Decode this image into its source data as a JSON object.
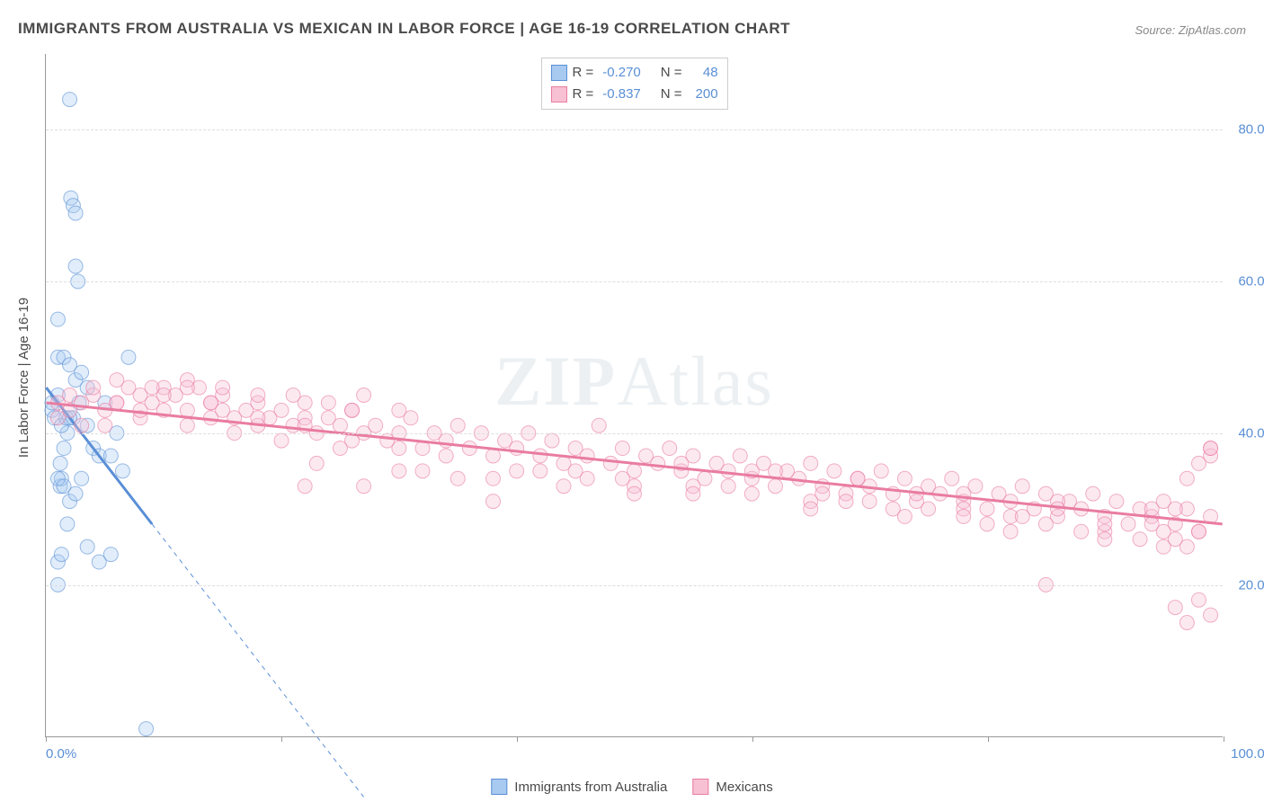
{
  "title": "IMMIGRANTS FROM AUSTRALIA VS MEXICAN IN LABOR FORCE | AGE 16-19 CORRELATION CHART",
  "source_label": "Source: ZipAtlas.com",
  "y_axis_label": "In Labor Force | Age 16-19",
  "watermark": {
    "bold": "ZIP",
    "rest": "Atlas"
  },
  "chart": {
    "type": "scatter",
    "background_color": "#ffffff",
    "grid_color": "#dddddd",
    "axis_color": "#999999",
    "tick_label_color": "#5a8fd6",
    "xlim": [
      0,
      100
    ],
    "ylim": [
      0,
      90
    ],
    "x_tick_positions": [
      0,
      20,
      40,
      60,
      80,
      100
    ],
    "x_tick_labels_shown": {
      "0": "0.0%",
      "100": "100.0%"
    },
    "y_tick_positions": [
      20,
      40,
      60,
      80
    ],
    "y_tick_labels": {
      "20": "20.0%",
      "40": "40.0%",
      "60": "60.0%",
      "80": "80.0%"
    },
    "label_fontsize": 15,
    "title_fontsize": 17,
    "marker_radius": 8,
    "marker_fill_opacity": 0.35,
    "marker_stroke_opacity": 0.6,
    "marker_stroke_width": 1,
    "regression_line_width_solid": 3,
    "regression_line_width_dash": 1
  },
  "series": [
    {
      "name": "Immigrants from Australia",
      "color": "#5a8fd6",
      "fill_color": "#a8caf0",
      "R": "-0.270",
      "N": "48",
      "regression": {
        "x1": 0,
        "y1": 46,
        "x2_solid": 9,
        "y2_solid": 28,
        "x2_dash": 27,
        "y2_dash": -8
      },
      "points": [
        [
          0.5,
          43
        ],
        [
          0.5,
          44
        ],
        [
          0.7,
          42
        ],
        [
          1.0,
          45
        ],
        [
          1.2,
          33
        ],
        [
          1.3,
          34
        ],
        [
          1.5,
          38
        ],
        [
          1.8,
          40
        ],
        [
          2.0,
          84
        ],
        [
          2.1,
          71
        ],
        [
          2.3,
          70
        ],
        [
          2.5,
          69
        ],
        [
          2.5,
          62
        ],
        [
          2.7,
          60
        ],
        [
          1.0,
          55
        ],
        [
          1.0,
          50
        ],
        [
          1.5,
          50
        ],
        [
          2.0,
          49
        ],
        [
          2.5,
          47
        ],
        [
          3.0,
          48
        ],
        [
          3.5,
          46
        ],
        [
          3.5,
          41
        ],
        [
          4.0,
          38
        ],
        [
          4.5,
          37
        ],
        [
          5.0,
          44
        ],
        [
          5.5,
          37
        ],
        [
          6.0,
          40
        ],
        [
          6.5,
          35
        ],
        [
          7.0,
          50
        ],
        [
          1.0,
          34
        ],
        [
          1.2,
          36
        ],
        [
          1.5,
          33
        ],
        [
          2.0,
          31
        ],
        [
          2.5,
          32
        ],
        [
          3.0,
          34
        ],
        [
          1.0,
          23
        ],
        [
          1.3,
          24
        ],
        [
          1.8,
          28
        ],
        [
          3.5,
          25
        ],
        [
          4.5,
          23
        ],
        [
          5.5,
          24
        ],
        [
          1.0,
          20
        ],
        [
          1.3,
          41
        ],
        [
          1.7,
          42
        ],
        [
          2.3,
          42
        ],
        [
          2.8,
          44
        ],
        [
          8.5,
          1
        ],
        [
          2.0,
          42
        ]
      ]
    },
    {
      "name": "Mexicans",
      "color": "#e97ca1",
      "fill_color": "#f7c0d3",
      "R": "-0.837",
      "N": "200",
      "regression": {
        "x1": 0,
        "y1": 44,
        "x2_solid": 100,
        "y2_solid": 28,
        "x2_dash": 100,
        "y2_dash": 28
      },
      "points": [
        [
          1,
          42
        ],
        [
          2,
          43
        ],
        [
          3,
          44
        ],
        [
          4,
          45
        ],
        [
          5,
          43
        ],
        [
          6,
          44
        ],
        [
          7,
          46
        ],
        [
          8,
          45
        ],
        [
          9,
          44
        ],
        [
          10,
          46
        ],
        [
          11,
          45
        ],
        [
          12,
          43
        ],
        [
          13,
          46
        ],
        [
          14,
          44
        ],
        [
          15,
          45
        ],
        [
          16,
          42
        ],
        [
          17,
          43
        ],
        [
          18,
          44
        ],
        [
          19,
          42
        ],
        [
          20,
          43
        ],
        [
          21,
          41
        ],
        [
          22,
          44
        ],
        [
          23,
          40
        ],
        [
          24,
          42
        ],
        [
          25,
          41
        ],
        [
          26,
          43
        ],
        [
          27,
          40
        ],
        [
          28,
          41
        ],
        [
          29,
          39
        ],
        [
          30,
          40
        ],
        [
          31,
          42
        ],
        [
          32,
          38
        ],
        [
          33,
          40
        ],
        [
          34,
          39
        ],
        [
          35,
          41
        ],
        [
          36,
          38
        ],
        [
          37,
          40
        ],
        [
          38,
          37
        ],
        [
          39,
          39
        ],
        [
          40,
          38
        ],
        [
          41,
          40
        ],
        [
          42,
          37
        ],
        [
          43,
          39
        ],
        [
          44,
          36
        ],
        [
          45,
          38
        ],
        [
          46,
          37
        ],
        [
          47,
          41
        ],
        [
          48,
          36
        ],
        [
          49,
          38
        ],
        [
          50,
          35
        ],
        [
          51,
          37
        ],
        [
          52,
          36
        ],
        [
          53,
          38
        ],
        [
          54,
          35
        ],
        [
          55,
          37
        ],
        [
          56,
          34
        ],
        [
          57,
          36
        ],
        [
          58,
          35
        ],
        [
          59,
          37
        ],
        [
          60,
          34
        ],
        [
          61,
          36
        ],
        [
          62,
          33
        ],
        [
          63,
          35
        ],
        [
          64,
          34
        ],
        [
          65,
          36
        ],
        [
          66,
          33
        ],
        [
          67,
          35
        ],
        [
          68,
          32
        ],
        [
          69,
          34
        ],
        [
          70,
          33
        ],
        [
          71,
          35
        ],
        [
          72,
          32
        ],
        [
          73,
          34
        ],
        [
          74,
          31
        ],
        [
          75,
          33
        ],
        [
          76,
          32
        ],
        [
          77,
          34
        ],
        [
          78,
          31
        ],
        [
          79,
          33
        ],
        [
          80,
          30
        ],
        [
          81,
          32
        ],
        [
          82,
          31
        ],
        [
          83,
          33
        ],
        [
          84,
          30
        ],
        [
          85,
          32
        ],
        [
          86,
          29
        ],
        [
          87,
          31
        ],
        [
          88,
          30
        ],
        [
          89,
          32
        ],
        [
          90,
          29
        ],
        [
          91,
          31
        ],
        [
          92,
          28
        ],
        [
          93,
          30
        ],
        [
          94,
          29
        ],
        [
          95,
          31
        ],
        [
          96,
          28
        ],
        [
          97,
          30
        ],
        [
          98,
          27
        ],
        [
          99,
          37
        ],
        [
          99,
          38
        ],
        [
          3,
          41
        ],
        [
          5,
          41
        ],
        [
          8,
          42
        ],
        [
          12,
          41
        ],
        [
          16,
          40
        ],
        [
          20,
          39
        ],
        [
          25,
          38
        ],
        [
          30,
          35
        ],
        [
          35,
          34
        ],
        [
          40,
          35
        ],
        [
          1,
          44
        ],
        [
          2,
          45
        ],
        [
          4,
          46
        ],
        [
          6,
          47
        ],
        [
          9,
          46
        ],
        [
          12,
          47
        ],
        [
          15,
          46
        ],
        [
          8,
          43
        ],
        [
          10,
          45
        ],
        [
          14,
          44
        ],
        [
          18,
          41
        ],
        [
          22,
          42
        ],
        [
          26,
          39
        ],
        [
          30,
          38
        ],
        [
          34,
          37
        ],
        [
          38,
          34
        ],
        [
          42,
          35
        ],
        [
          46,
          34
        ],
        [
          50,
          33
        ],
        [
          54,
          36
        ],
        [
          58,
          33
        ],
        [
          62,
          35
        ],
        [
          66,
          32
        ],
        [
          70,
          31
        ],
        [
          74,
          32
        ],
        [
          78,
          30
        ],
        [
          82,
          29
        ],
        [
          86,
          31
        ],
        [
          90,
          27
        ],
        [
          94,
          28
        ],
        [
          96,
          26
        ],
        [
          97,
          25
        ],
        [
          98,
          27
        ],
        [
          99,
          29
        ],
        [
          95,
          25
        ],
        [
          93,
          26
        ],
        [
          90,
          28
        ],
        [
          88,
          27
        ],
        [
          85,
          28
        ],
        [
          83,
          29
        ],
        [
          80,
          28
        ],
        [
          78,
          29
        ],
        [
          75,
          30
        ],
        [
          72,
          30
        ],
        [
          68,
          31
        ],
        [
          65,
          31
        ],
        [
          60,
          32
        ],
        [
          55,
          33
        ],
        [
          50,
          32
        ],
        [
          45,
          35
        ],
        [
          99,
          38
        ],
        [
          98,
          36
        ],
        [
          97,
          34
        ],
        [
          96,
          30
        ],
        [
          95,
          27
        ],
        [
          85,
          20
        ],
        [
          96,
          17
        ],
        [
          98,
          18
        ],
        [
          99,
          16
        ],
        [
          97,
          15
        ],
        [
          22,
          33
        ],
        [
          23,
          36
        ],
        [
          27,
          33
        ],
        [
          32,
          35
        ],
        [
          38,
          31
        ],
        [
          44,
          33
        ],
        [
          49,
          34
        ],
        [
          55,
          32
        ],
        [
          60,
          35
        ],
        [
          65,
          30
        ],
        [
          69,
          34
        ],
        [
          73,
          29
        ],
        [
          78,
          32
        ],
        [
          82,
          27
        ],
        [
          86,
          30
        ],
        [
          90,
          26
        ],
        [
          94,
          30
        ],
        [
          12,
          46
        ],
        [
          15,
          43
        ],
        [
          18,
          45
        ],
        [
          21,
          45
        ],
        [
          24,
          44
        ],
        [
          27,
          45
        ],
        [
          30,
          43
        ],
        [
          6,
          44
        ],
        [
          10,
          43
        ],
        [
          14,
          42
        ],
        [
          18,
          42
        ],
        [
          22,
          41
        ],
        [
          26,
          43
        ]
      ]
    }
  ],
  "legend": [
    {
      "label": "Immigrants from Australia",
      "color": "#5a8fd6",
      "fill": "#a8caf0"
    },
    {
      "label": "Mexicans",
      "color": "#e97ca1",
      "fill": "#f7c0d3"
    }
  ]
}
